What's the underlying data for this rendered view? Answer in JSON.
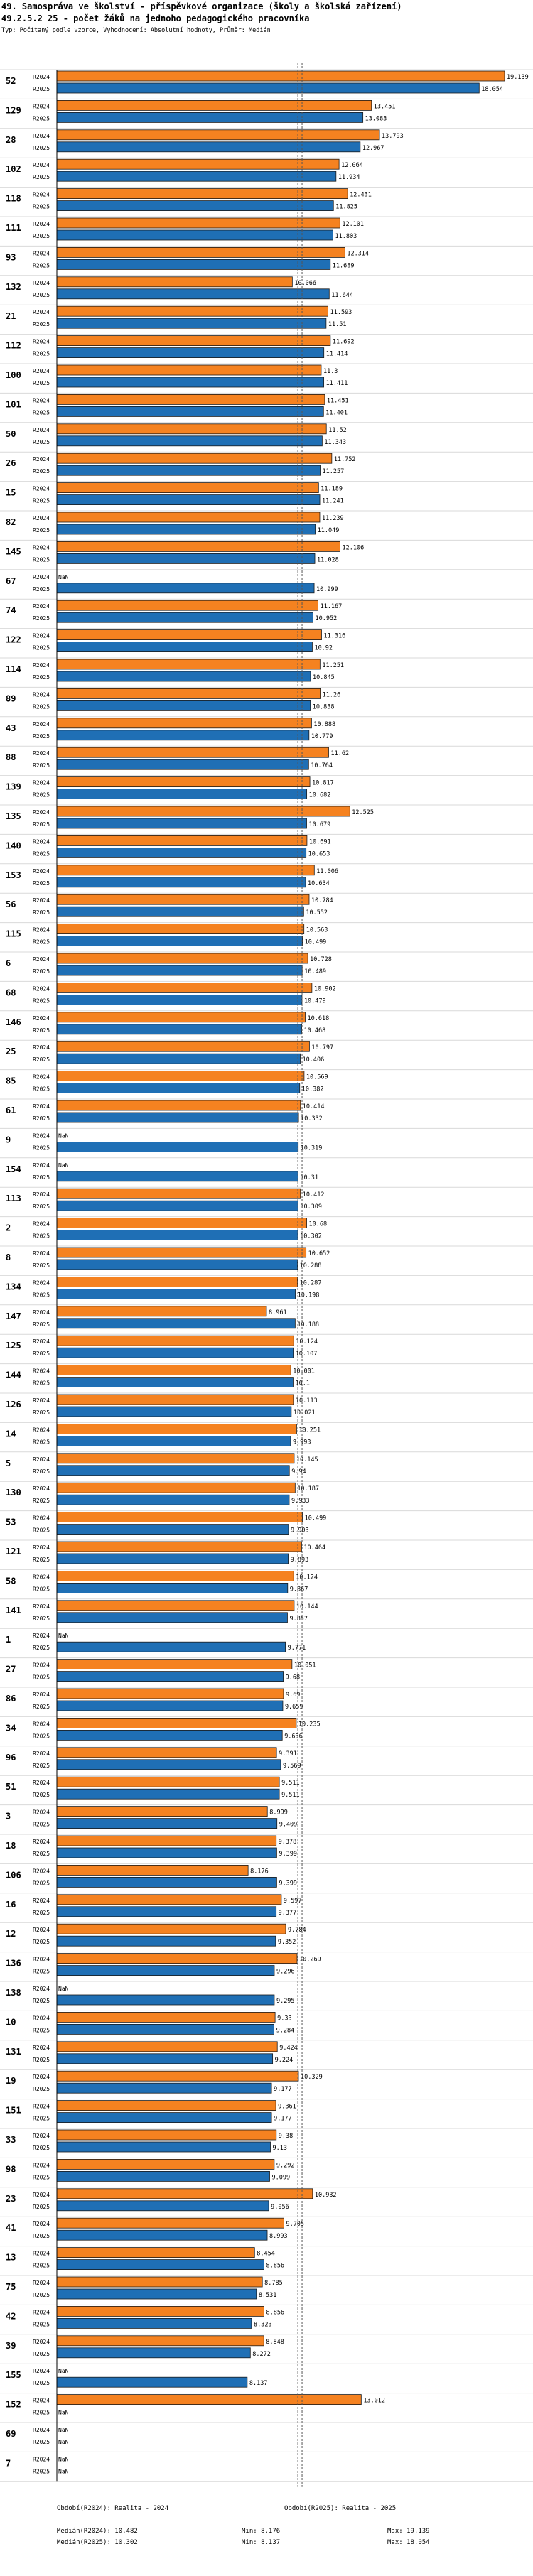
{
  "header": {
    "title_line1": "49. Samospráva ve školství - příspěvkové organizace (školy a školská zařízení)",
    "title_line2": "49.2.5.2 25 - počet žáků na jednoho pedagogického pracovníka",
    "subtitle": "Typ: Počítaný podle vzorce, Vyhodnocení: Absolutní hodnoty, Průměr: Medián"
  },
  "chart_data": {
    "type": "bar",
    "orientation": "horizontal",
    "series": [
      {
        "name": "R2024",
        "label": "Období(R2024): Realita - 2024",
        "color": "#f58220"
      },
      {
        "name": "R2025",
        "label": "Období(R2025): Realita - 2025",
        "color": "#1f6fb5"
      }
    ],
    "xlim": [
      0,
      19.139
    ],
    "medians": {
      "R2024": 10.482,
      "R2025": 10.302
    },
    "categories": [
      {
        "id": "52",
        "R2024": 19.139,
        "R2025": 18.054
      },
      {
        "id": "129",
        "R2024": 13.451,
        "R2025": 13.083
      },
      {
        "id": "28",
        "R2024": 13.793,
        "R2025": 12.967
      },
      {
        "id": "102",
        "R2024": 12.064,
        "R2025": 11.934
      },
      {
        "id": "118",
        "R2024": 12.431,
        "R2025": 11.825
      },
      {
        "id": "111",
        "R2024": 12.101,
        "R2025": 11.803
      },
      {
        "id": "93",
        "R2024": 12.314,
        "R2025": 11.689
      },
      {
        "id": "132",
        "R2024": 10.066,
        "R2025": 11.644
      },
      {
        "id": "21",
        "R2024": 11.593,
        "R2025": 11.51
      },
      {
        "id": "112",
        "R2024": 11.692,
        "R2025": 11.414
      },
      {
        "id": "100",
        "R2024": 11.3,
        "R2025": 11.411
      },
      {
        "id": "101",
        "R2024": 11.451,
        "R2025": 11.401
      },
      {
        "id": "50",
        "R2024": 11.52,
        "R2025": 11.343
      },
      {
        "id": "26",
        "R2024": 11.752,
        "R2025": 11.257
      },
      {
        "id": "15",
        "R2024": 11.189,
        "R2025": 11.241
      },
      {
        "id": "82",
        "R2024": 11.239,
        "R2025": 11.049
      },
      {
        "id": "145",
        "R2024": 12.106,
        "R2025": 11.028
      },
      {
        "id": "67",
        "R2024": null,
        "R2025": 10.999
      },
      {
        "id": "74",
        "R2024": 11.167,
        "R2025": 10.952
      },
      {
        "id": "122",
        "R2024": 11.316,
        "R2025": 10.92
      },
      {
        "id": "114",
        "R2024": 11.251,
        "R2025": 10.845
      },
      {
        "id": "89",
        "R2024": 11.26,
        "R2025": 10.838
      },
      {
        "id": "43",
        "R2024": 10.888,
        "R2025": 10.779
      },
      {
        "id": "88",
        "R2024": 11.62,
        "R2025": 10.764
      },
      {
        "id": "139",
        "R2024": 10.817,
        "R2025": 10.682
      },
      {
        "id": "135",
        "R2024": 12.525,
        "R2025": 10.679
      },
      {
        "id": "140",
        "R2024": 10.691,
        "R2025": 10.653
      },
      {
        "id": "153",
        "R2024": 11.006,
        "R2025": 10.634
      },
      {
        "id": "56",
        "R2024": 10.784,
        "R2025": 10.552
      },
      {
        "id": "115",
        "R2024": 10.563,
        "R2025": 10.499
      },
      {
        "id": "6",
        "R2024": 10.728,
        "R2025": 10.489
      },
      {
        "id": "68",
        "R2024": 10.902,
        "R2025": 10.479
      },
      {
        "id": "146",
        "R2024": 10.618,
        "R2025": 10.468
      },
      {
        "id": "25",
        "R2024": 10.797,
        "R2025": 10.406
      },
      {
        "id": "85",
        "R2024": 10.569,
        "R2025": 10.382
      },
      {
        "id": "61",
        "R2024": 10.414,
        "R2025": 10.332
      },
      {
        "id": "9",
        "R2024": null,
        "R2025": 10.319
      },
      {
        "id": "154",
        "R2024": null,
        "R2025": 10.31
      },
      {
        "id": "113",
        "R2024": 10.412,
        "R2025": 10.309
      },
      {
        "id": "2",
        "R2024": 10.68,
        "R2025": 10.302
      },
      {
        "id": "8",
        "R2024": 10.652,
        "R2025": 10.288
      },
      {
        "id": "134",
        "R2024": 10.287,
        "R2025": 10.198
      },
      {
        "id": "147",
        "R2024": 8.961,
        "R2025": 10.188
      },
      {
        "id": "125",
        "R2024": 10.124,
        "R2025": 10.107
      },
      {
        "id": "144",
        "R2024": 10.001,
        "R2025": 10.1
      },
      {
        "id": "126",
        "R2024": 10.113,
        "R2025": 10.021
      },
      {
        "id": "14",
        "R2024": 10.251,
        "R2025": 9.993
      },
      {
        "id": "5",
        "R2024": 10.145,
        "R2025": 9.94
      },
      {
        "id": "130",
        "R2024": 10.187,
        "R2025": 9.933
      },
      {
        "id": "53",
        "R2024": 10.499,
        "R2025": 9.903
      },
      {
        "id": "121",
        "R2024": 10.464,
        "R2025": 9.893
      },
      {
        "id": "58",
        "R2024": 10.124,
        "R2025": 9.867
      },
      {
        "id": "141",
        "R2024": 10.144,
        "R2025": 9.857
      },
      {
        "id": "1",
        "R2024": null,
        "R2025": 9.771
      },
      {
        "id": "27",
        "R2024": 10.051,
        "R2025": 9.68
      },
      {
        "id": "86",
        "R2024": 9.69,
        "R2025": 9.659
      },
      {
        "id": "34",
        "R2024": 10.235,
        "R2025": 9.636
      },
      {
        "id": "96",
        "R2024": 9.391,
        "R2025": 9.569
      },
      {
        "id": "51",
        "R2024": 9.511,
        "R2025": 9.511
      },
      {
        "id": "3",
        "R2024": 8.999,
        "R2025": 9.409
      },
      {
        "id": "18",
        "R2024": 9.378,
        "R2025": 9.399
      },
      {
        "id": "106",
        "R2024": 8.176,
        "R2025": 9.399
      },
      {
        "id": "16",
        "R2024": 9.597,
        "R2025": 9.377
      },
      {
        "id": "12",
        "R2024": 9.784,
        "R2025": 9.352
      },
      {
        "id": "136",
        "R2024": 10.269,
        "R2025": 9.296
      },
      {
        "id": "138",
        "R2024": null,
        "R2025": 9.295
      },
      {
        "id": "10",
        "R2024": 9.33,
        "R2025": 9.284
      },
      {
        "id": "131",
        "R2024": 9.424,
        "R2025": 9.224
      },
      {
        "id": "19",
        "R2024": 10.329,
        "R2025": 9.177
      },
      {
        "id": "151",
        "R2024": 9.361,
        "R2025": 9.177
      },
      {
        "id": "33",
        "R2024": 9.38,
        "R2025": 9.13
      },
      {
        "id": "98",
        "R2024": 9.292,
        "R2025": 9.099
      },
      {
        "id": "23",
        "R2024": 10.932,
        "R2025": 9.056
      },
      {
        "id": "41",
        "R2024": 9.705,
        "R2025": 8.993
      },
      {
        "id": "13",
        "R2024": 8.454,
        "R2025": 8.856
      },
      {
        "id": "75",
        "R2024": 8.785,
        "R2025": 8.531
      },
      {
        "id": "42",
        "R2024": 8.856,
        "R2025": 8.323
      },
      {
        "id": "39",
        "R2024": 8.848,
        "R2025": 8.272
      },
      {
        "id": "155",
        "R2024": null,
        "R2025": 8.137
      },
      {
        "id": "152",
        "R2024": 13.012,
        "R2025": null
      },
      {
        "id": "69",
        "R2024": null,
        "R2025": null
      },
      {
        "id": "7",
        "R2024": null,
        "R2025": null
      }
    ]
  },
  "footer": {
    "legend_r2024": "Období(R2024): Realita - 2024",
    "legend_r2025": "Období(R2025): Realita - 2025",
    "median_r2024": "Medián(R2024): 10.482",
    "median_r2025": "Medián(R2025): 10.302",
    "min_r2024": "Min: 8.176",
    "min_r2025": "Min: 8.137",
    "max_r2024": "Max: 19.139",
    "max_r2025": "Max: 18.054"
  }
}
